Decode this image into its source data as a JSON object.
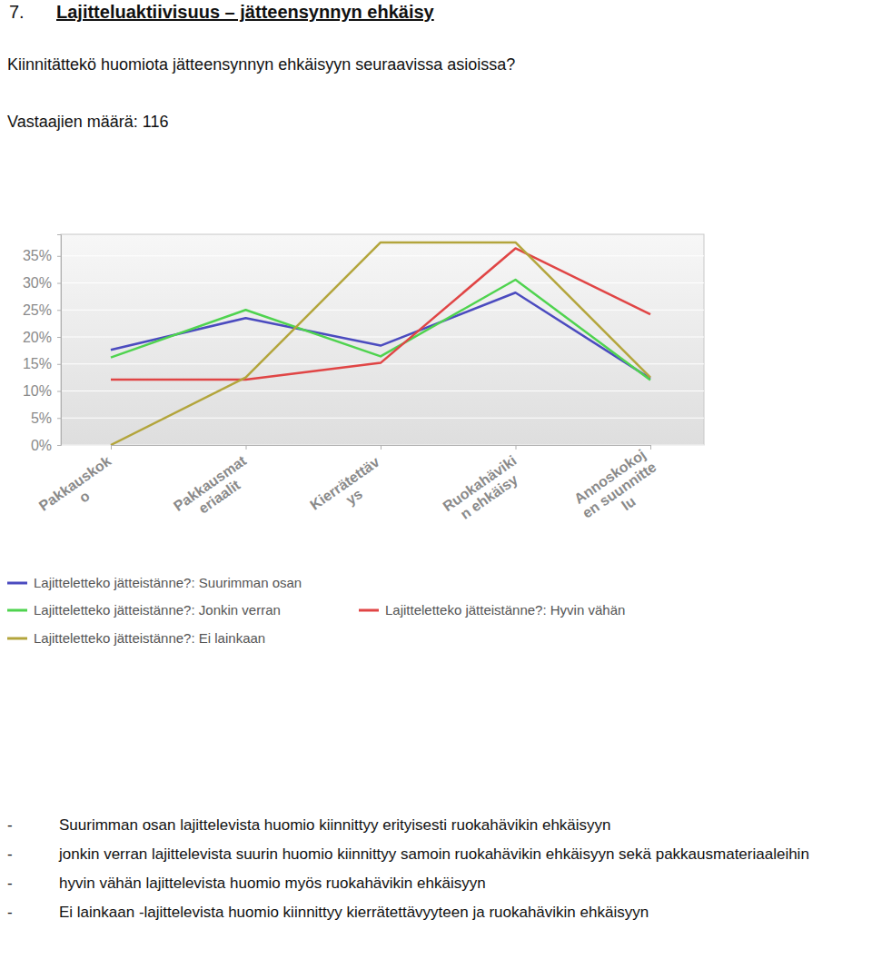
{
  "header": {
    "number": "7.",
    "title": "Lajitteluaktiivisuus – jätteensynnyn ehkäisy",
    "question": "Kiinnitättekö huomiota jätteensynnyn ehkäisyyn seuraavissa asioissa?",
    "respondents": "Vastaajien määrä: 116"
  },
  "chart_data": {
    "type": "line",
    "categories": [
      "Pakkauskok\no",
      "Pakkausmat\neriaalit",
      "Kierrätettäv\nys",
      "Ruokahäviki\nn ehkäisy",
      "Annoskokoj\nen suunnitte\nlu"
    ],
    "series": [
      {
        "name": "Lajitteletteko jätteistänne?: Suurimman osan",
        "color": "#4b4bbf",
        "values": [
          17.6,
          23.5,
          18.4,
          28.2,
          12.3
        ]
      },
      {
        "name": "Lajitteletteko jätteistänne?: Jonkin verran",
        "color": "#4fd34f",
        "values": [
          16.2,
          25.0,
          16.4,
          30.6,
          12.0
        ]
      },
      {
        "name": "Lajitteletteko jätteistänne?: Hyvin vähän",
        "color": "#e04545",
        "values": [
          12.1,
          12.1,
          15.2,
          36.4,
          24.2
        ]
      },
      {
        "name": "Lajitteletteko jätteistänne?: Ei lainkaan",
        "color": "#b3a53c",
        "values": [
          0,
          12.5,
          37.5,
          37.5,
          12.5
        ]
      }
    ],
    "ylim": [
      0,
      39
    ],
    "yticks": [
      {
        "value": 0,
        "label": "0%"
      },
      {
        "value": 5,
        "label": "5%"
      },
      {
        "value": 10,
        "label": "10%"
      },
      {
        "value": 15,
        "label": "15%"
      },
      {
        "value": 20,
        "label": "20%"
      },
      {
        "value": 25,
        "label": "25%"
      },
      {
        "value": 30,
        "label": "30%"
      },
      {
        "value": 35,
        "label": "35%"
      }
    ],
    "grid": true,
    "legend": "bottom"
  },
  "notes": [
    "Suurimman osan lajittelevista huomio kiinnittyy erityisesti ruokahävikin ehkäisyyn",
    "jonkin verran lajittelevista suurin huomio kiinnittyy samoin ruokahävikin ehkäisyyn sekä pakkausmateriaaleihin",
    "hyvin vähän lajittelevista huomio myös ruokahävikin ehkäisyyn",
    "Ei lainkaan -lajittelevista huomio kiinnittyy kierrätettävyyteen ja ruokahävikin ehkäisyyn"
  ]
}
